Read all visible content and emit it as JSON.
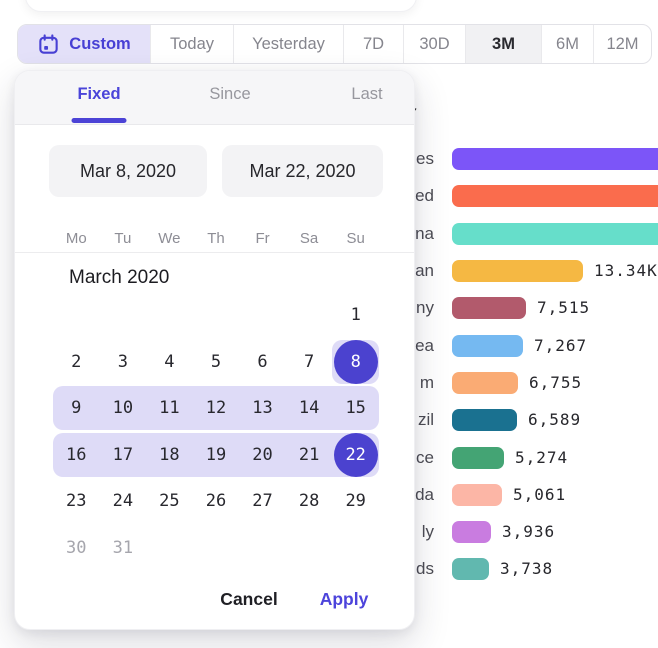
{
  "toolbar": {
    "custom_label": "Custom",
    "presets": [
      {
        "label": "Today",
        "selected": false
      },
      {
        "label": "Yesterday",
        "selected": false
      },
      {
        "label": "7D",
        "selected": false
      },
      {
        "label": "30D",
        "selected": false
      },
      {
        "label": "3M",
        "selected": true
      },
      {
        "label": "6M",
        "selected": false
      },
      {
        "label": "12M",
        "selected": false
      }
    ]
  },
  "datepicker": {
    "tabs": [
      {
        "label": "Fixed",
        "active": true
      },
      {
        "label": "Since",
        "active": false
      },
      {
        "label": "Last",
        "active": false
      }
    ],
    "start_date": "Mar 8, 2020",
    "end_date": "Mar 22, 2020",
    "weekdays": [
      "Mo",
      "Tu",
      "We",
      "Th",
      "Fr",
      "Sa",
      "Su"
    ],
    "month_title": "March 2020",
    "weeks": [
      [
        null,
        null,
        null,
        null,
        null,
        null,
        1
      ],
      [
        2,
        3,
        4,
        5,
        6,
        7,
        8
      ],
      [
        9,
        10,
        11,
        12,
        13,
        14,
        15
      ],
      [
        16,
        17,
        18,
        19,
        20,
        21,
        22
      ],
      [
        23,
        24,
        25,
        26,
        27,
        28,
        29
      ],
      [
        30,
        31,
        null,
        null,
        null,
        null,
        null
      ]
    ],
    "selected_days": [
      8,
      22
    ],
    "muted_days": [
      30,
      31
    ],
    "range_bands": [
      {
        "week": 1,
        "from_col": 6,
        "to_col": 6
      },
      {
        "week": 2,
        "from_col": 0,
        "to_col": 6
      },
      {
        "week": 3,
        "from_col": 0,
        "to_col": 6
      }
    ],
    "cancel_label": "Cancel",
    "apply_label": "Apply"
  },
  "background": {
    "partial_check_glyph": "✓"
  },
  "chart_data": {
    "type": "bar",
    "orientation": "horizontal",
    "categories_visible": [
      "es",
      "ed",
      "na",
      "an",
      "ny",
      "ea",
      "m",
      "zil",
      "ce",
      "da",
      "ly",
      "ds"
    ],
    "values": [
      null,
      null,
      null,
      13340,
      7515,
      7267,
      6755,
      6589,
      5274,
      5061,
      3936,
      3738
    ],
    "value_labels": [
      "",
      "",
      "",
      "13.34K",
      "7,515",
      "7,267",
      "6,755",
      "6,589",
      "5,274",
      "5,061",
      "3,936",
      "3,738"
    ],
    "bar_colors": [
      "#7C55F8",
      "#FA6C4D",
      "#66DECA",
      "#F5B843",
      "#B25A6C",
      "#75B9F1",
      "#FAAB74",
      "#1A7190",
      "#44A474",
      "#FCB6A6",
      "#C97CE0",
      "#61B8AF"
    ],
    "legend_position": "none",
    "grid": false
  },
  "colors": {
    "accent_purple": "#4B42CF",
    "link_purple": "#4C43DB",
    "range_band": "#DEDBF7",
    "custom_chip_bg": "#E4E1F9",
    "selected_preset_bg": "#F1F1F3"
  }
}
